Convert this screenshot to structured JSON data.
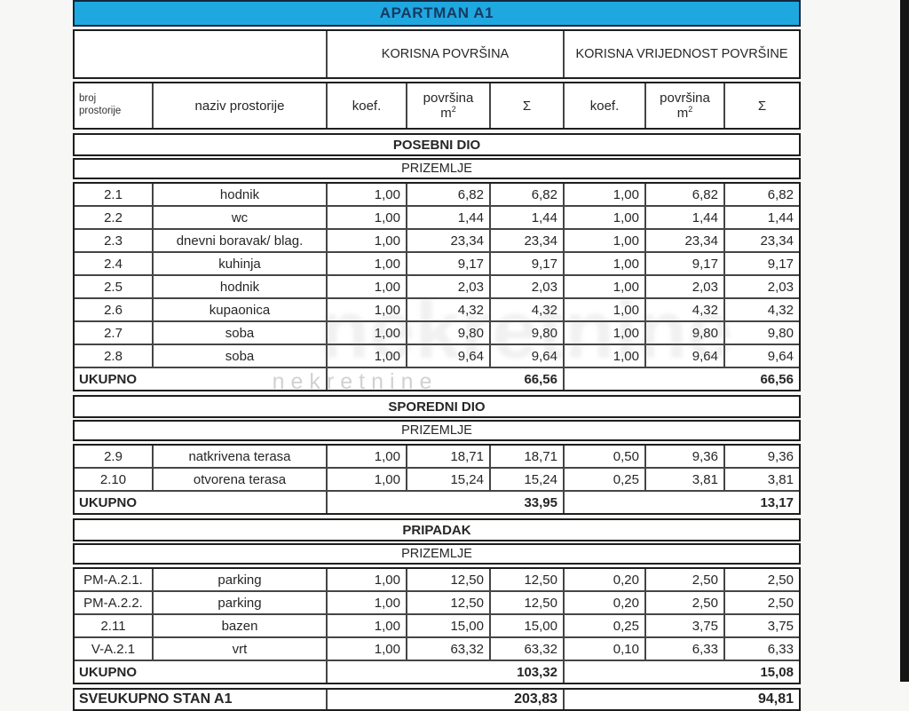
{
  "title": "APARTMAN A1",
  "colors": {
    "title_bg": "#1fa8e0",
    "title_text": "#163a63",
    "border_outer": "#1e1e1e",
    "border_inner": "#454545"
  },
  "group_headers": {
    "left": "KORISNA POVRŠINA",
    "right": "KORISNA VRIJEDNOST POVRŠINE"
  },
  "column_headers": {
    "broj_line1": "broj",
    "broj_line2": "prostorije",
    "naziv": "naziv prostorije",
    "koef": "koef.",
    "povrsina": "površina",
    "unit": "m",
    "unit_sup": "2",
    "sigma": "Σ"
  },
  "floor_label": "PRIZEMLJE",
  "ukupno_label": "UKUPNO",
  "sections": [
    {
      "name": "POSEBNI DIO",
      "floor": "PRIZEMLJE",
      "rows": [
        {
          "id": "2.1",
          "name": "hodnik",
          "k1": "1,00",
          "p1": "6,82",
          "s1": "6,82",
          "k2": "1,00",
          "p2": "6,82",
          "s2": "6,82"
        },
        {
          "id": "2.2",
          "name": "wc",
          "k1": "1,00",
          "p1": "1,44",
          "s1": "1,44",
          "k2": "1,00",
          "p2": "1,44",
          "s2": "1,44"
        },
        {
          "id": "2.3",
          "name": "dnevni boravak/ blag.",
          "k1": "1,00",
          "p1": "23,34",
          "s1": "23,34",
          "k2": "1,00",
          "p2": "23,34",
          "s2": "23,34"
        },
        {
          "id": "2.4",
          "name": "kuhinja",
          "k1": "1,00",
          "p1": "9,17",
          "s1": "9,17",
          "k2": "1,00",
          "p2": "9,17",
          "s2": "9,17"
        },
        {
          "id": "2.5",
          "name": "hodnik",
          "k1": "1,00",
          "p1": "2,03",
          "s1": "2,03",
          "k2": "1,00",
          "p2": "2,03",
          "s2": "2,03"
        },
        {
          "id": "2.6",
          "name": "kupaonica",
          "k1": "1,00",
          "p1": "4,32",
          "s1": "4,32",
          "k2": "1,00",
          "p2": "4,32",
          "s2": "4,32"
        },
        {
          "id": "2.7",
          "name": "soba",
          "k1": "1,00",
          "p1": "9,80",
          "s1": "9,80",
          "k2": "1,00",
          "p2": "9,80",
          "s2": "9,80"
        },
        {
          "id": "2.8",
          "name": "soba",
          "k1": "1,00",
          "p1": "9,64",
          "s1": "9,64",
          "k2": "1,00",
          "p2": "9,64",
          "s2": "9,64"
        }
      ],
      "ukupno": {
        "left_total": "66,56",
        "right_total": "66,56"
      }
    },
    {
      "name": "SPOREDNI DIO",
      "floor": "PRIZEMLJE",
      "rows": [
        {
          "id": "2.9",
          "name": "natkrivena terasa",
          "k1": "1,00",
          "p1": "18,71",
          "s1": "18,71",
          "k2": "0,50",
          "p2": "9,36",
          "s2": "9,36"
        },
        {
          "id": "2.10",
          "name": "otvorena terasa",
          "k1": "1,00",
          "p1": "15,24",
          "s1": "15,24",
          "k2": "0,25",
          "p2": "3,81",
          "s2": "3,81"
        }
      ],
      "ukupno": {
        "left_total": "33,95",
        "right_total": "13,17"
      }
    },
    {
      "name": "PRIPADAK",
      "floor": "PRIZEMLJE",
      "rows": [
        {
          "id": "PM-A.2.1.",
          "name": "parking",
          "k1": "1,00",
          "p1": "12,50",
          "s1": "12,50",
          "k2": "0,20",
          "p2": "2,50",
          "s2": "2,50"
        },
        {
          "id": "PM-A.2.2.",
          "name": "parking",
          "k1": "1,00",
          "p1": "12,50",
          "s1": "12,50",
          "k2": "0,20",
          "p2": "2,50",
          "s2": "2,50"
        },
        {
          "id": "2.11",
          "name": "bazen",
          "k1": "1,00",
          "p1": "15,00",
          "s1": "15,00",
          "k2": "0,25",
          "p2": "3,75",
          "s2": "3,75"
        },
        {
          "id": "V-A.2.1",
          "name": "vrt",
          "k1": "1,00",
          "p1": "63,32",
          "s1": "63,32",
          "k2": "0,10",
          "p2": "6,33",
          "s2": "6,33"
        }
      ],
      "ukupno": {
        "left_total": "103,32",
        "right_total": "15,08"
      }
    }
  ],
  "grand_total": {
    "label": "SVEUKUPNO STAN A1",
    "left_total": "203,83",
    "right_total": "94,81"
  },
  "watermark": {
    "text": "nekretnine"
  }
}
